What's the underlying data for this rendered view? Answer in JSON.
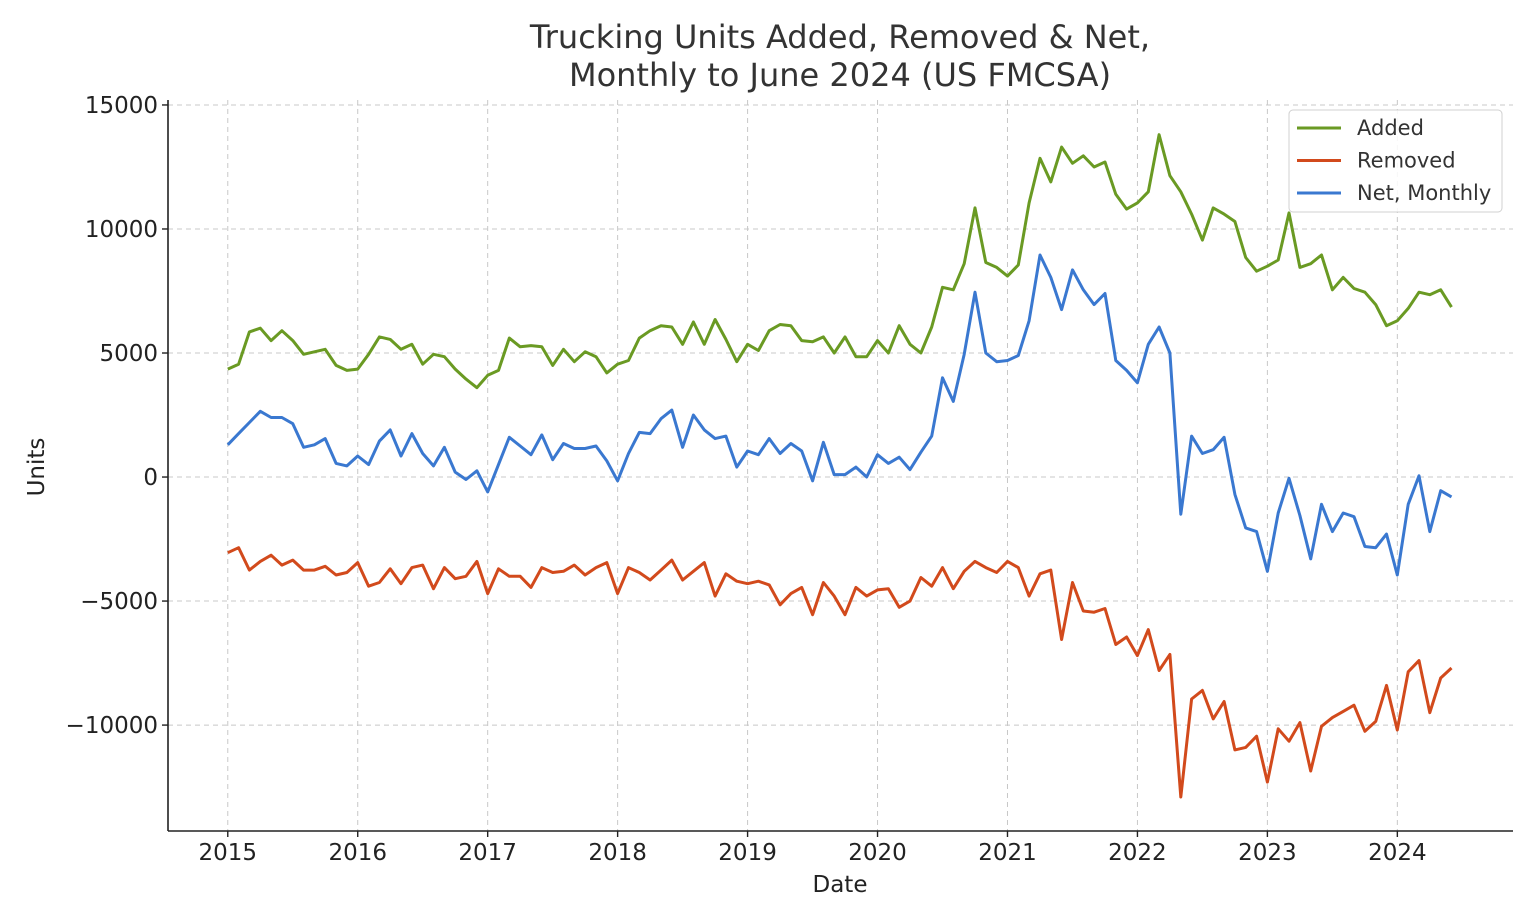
{
  "chart_data": {
    "type": "line",
    "title": "Trucking Units Added, Removed & Net,\nMonthly to June 2024 (US FMCSA)",
    "title_lines": [
      "Trucking Units Added, Removed & Net,",
      "Monthly to June 2024 (US FMCSA)"
    ],
    "xlabel": "Date",
    "ylabel": "Units",
    "x_start": "2015-01",
    "x_frequency": "monthly",
    "xlim": [
      2014.54,
      2024.89
    ],
    "ylim": [
      -14270,
      15200
    ],
    "xticks": [
      2015,
      2016,
      2017,
      2018,
      2019,
      2020,
      2021,
      2022,
      2023,
      2024
    ],
    "xtick_labels": [
      "2015",
      "2016",
      "2017",
      "2018",
      "2019",
      "2020",
      "2021",
      "2022",
      "2023",
      "2024"
    ],
    "yticks": [
      15000,
      10000,
      5000,
      0,
      -5000,
      -10000
    ],
    "ytick_labels": [
      "15000",
      "10000",
      "5000",
      "0",
      "−5000",
      "−10000"
    ],
    "grid": true,
    "legend_position": "top-right",
    "series": [
      {
        "name": "Added",
        "color": "#6a9a23",
        "values": [
          4350,
          4550,
          5850,
          6000,
          5500,
          5900,
          5500,
          4950,
          5050,
          5150,
          4500,
          4300,
          4350,
          4950,
          5650,
          5550,
          5150,
          5350,
          4550,
          4950,
          4850,
          4350,
          3950,
          3600,
          4100,
          4300,
          5600,
          5250,
          5300,
          5250,
          4500,
          5150,
          4650,
          5050,
          4850,
          4200,
          4550,
          4700,
          5600,
          5900,
          6100,
          6050,
          5350,
          6250,
          5350,
          6350,
          5550,
          4650,
          5350,
          5100,
          5900,
          6150,
          6100,
          5500,
          5450,
          5650,
          5000,
          5650,
          4850,
          4850,
          5500,
          5000,
          6100,
          5350,
          5000,
          6050,
          7650,
          7550,
          8600,
          10850,
          8650,
          8450,
          8100,
          8550,
          11050,
          12850,
          11900,
          13300,
          12650,
          12950,
          12500,
          12700,
          11400,
          10800,
          11050,
          11500,
          13800,
          12150,
          11500,
          10600,
          9550,
          10850,
          10600,
          10300,
          8850,
          8300,
          8500,
          8750,
          10650,
          8450,
          8600,
          8950,
          7550,
          8050,
          7600,
          7450,
          6950,
          6100,
          6300,
          6800,
          7450,
          7350,
          7550,
          6850
        ]
      },
      {
        "name": "Removed",
        "color": "#d24a1c",
        "values": [
          -3050,
          -2850,
          -3750,
          -3400,
          -3150,
          -3550,
          -3350,
          -3750,
          -3750,
          -3600,
          -3950,
          -3850,
          -3450,
          -4400,
          -4250,
          -3700,
          -4300,
          -3650,
          -3550,
          -4500,
          -3650,
          -4100,
          -4000,
          -3400,
          -4700,
          -3700,
          -4000,
          -4000,
          -4450,
          -3650,
          -3850,
          -3800,
          -3550,
          -3950,
          -3650,
          -3450,
          -4700,
          -3650,
          -3850,
          -4150,
          -3750,
          -3350,
          -4150,
          -3800,
          -3450,
          -4800,
          -3900,
          -4200,
          -4300,
          -4200,
          -4350,
          -5150,
          -4700,
          -4450,
          -5550,
          -4250,
          -4800,
          -5550,
          -4450,
          -4800,
          -4550,
          -4500,
          -5250,
          -5000,
          -4050,
          -4400,
          -3650,
          -4500,
          -3800,
          -3400,
          -3650,
          -3850,
          -3400,
          -3650,
          -4800,
          -3900,
          -3750,
          -6550,
          -4250,
          -5400,
          -5450,
          -5300,
          -6750,
          -6450,
          -7200,
          -6150,
          -7800,
          -7150,
          -12900,
          -8950,
          -8600,
          -9750,
          -9050,
          -11000,
          -10900,
          -10450,
          -12300,
          -10150,
          -10650,
          -9900,
          -11850,
          -10050,
          -9700,
          -9450,
          -9200,
          -10250,
          -9850,
          -8400,
          -10200,
          -7850,
          -7400,
          -9500,
          -8100,
          -7700
        ]
      },
      {
        "name": "Net, Monthly",
        "color": "#3a78d0",
        "values": [
          1300,
          1750,
          2200,
          2650,
          2400,
          2400,
          2150,
          1200,
          1300,
          1550,
          550,
          450,
          850,
          500,
          1450,
          1900,
          850,
          1750,
          950,
          450,
          1200,
          200,
          -100,
          250,
          -600,
          500,
          1600,
          1250,
          900,
          1700,
          700,
          1350,
          1150,
          1150,
          1250,
          650,
          -150,
          950,
          1800,
          1750,
          2350,
          2700,
          1200,
          2500,
          1900,
          1550,
          1650,
          400,
          1050,
          900,
          1550,
          950,
          1350,
          1050,
          -150,
          1400,
          100,
          100,
          400,
          0,
          900,
          550,
          800,
          300,
          1000,
          1650,
          4000,
          3050,
          4950,
          7450,
          5000,
          4650,
          4700,
          4900,
          6300,
          8950,
          8050,
          6750,
          8350,
          7550,
          6950,
          7400,
          4700,
          4300,
          3800,
          5350,
          6050,
          5000,
          -1500,
          1650,
          950,
          1100,
          1600,
          -700,
          -2050,
          -2200,
          -3800,
          -1450,
          -50,
          -1550,
          -3300,
          -1100,
          -2200,
          -1450,
          -1600,
          -2800,
          -2850,
          -2300,
          -3950,
          -1100,
          50,
          -2200,
          -550,
          -800
        ]
      }
    ]
  }
}
